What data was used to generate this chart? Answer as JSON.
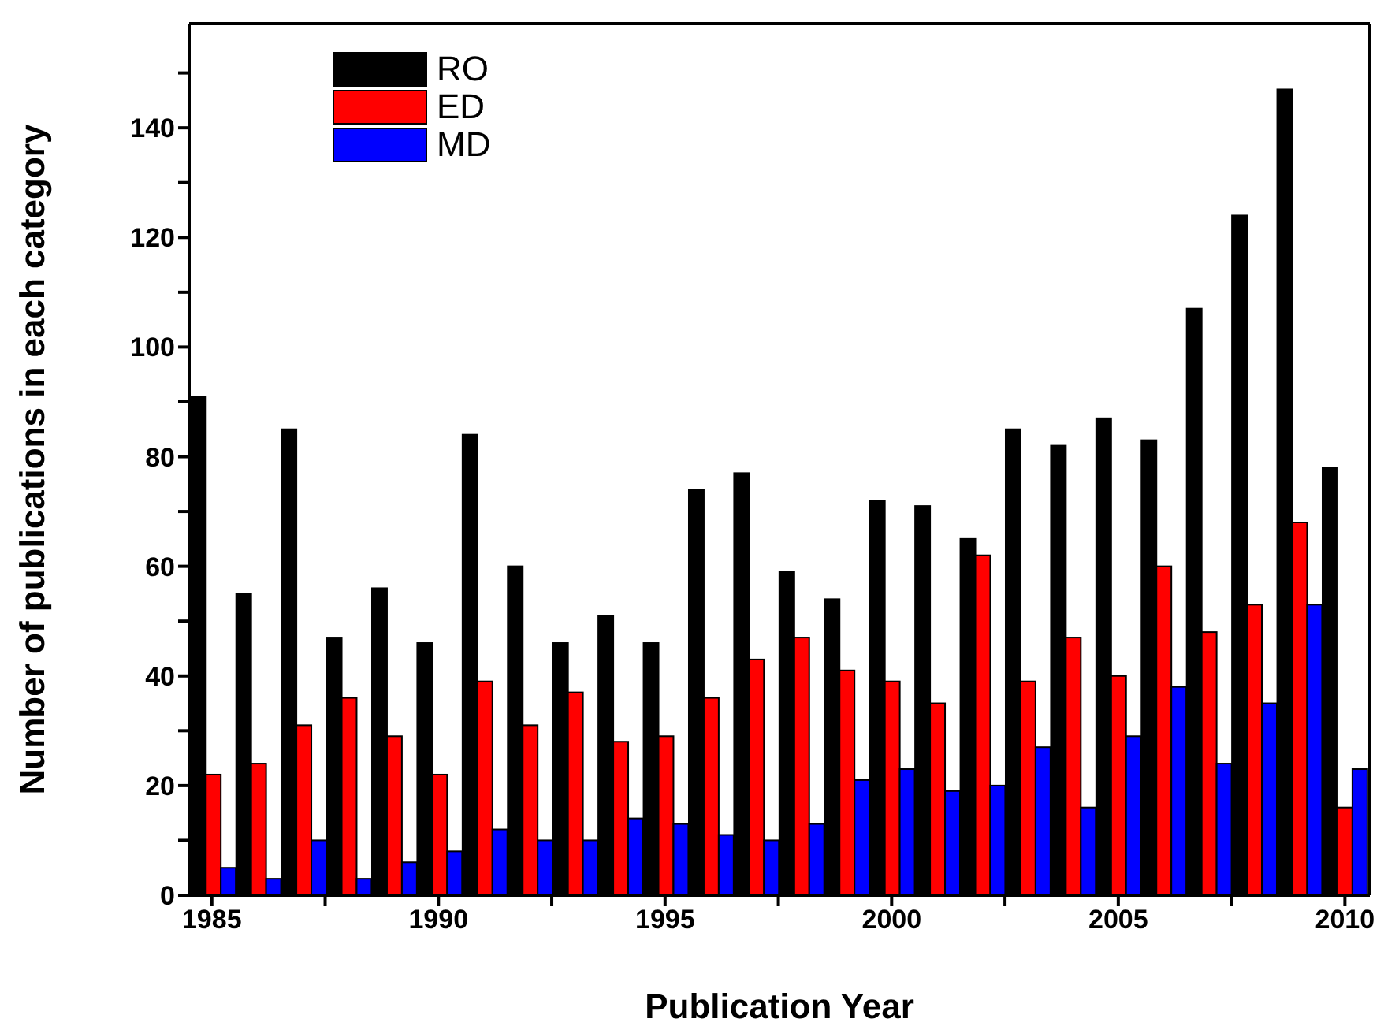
{
  "chart_data": {
    "type": "bar",
    "xlabel": "Publication Year",
    "ylabel": "Number of publications in each category",
    "x": [
      1985,
      1986,
      1987,
      1988,
      1989,
      1990,
      1991,
      1992,
      1993,
      1994,
      1995,
      1996,
      1997,
      1998,
      1999,
      2000,
      2001,
      2002,
      2003,
      2004,
      2005,
      2006,
      2007,
      2008,
      2009,
      2010
    ],
    "series": [
      {
        "name": "RO",
        "color": "#000000",
        "values": [
          91,
          55,
          85,
          47,
          56,
          46,
          84,
          60,
          46,
          51,
          46,
          74,
          77,
          59,
          54,
          72,
          71,
          65,
          85,
          82,
          87,
          83,
          107,
          124,
          147,
          78
        ]
      },
      {
        "name": "ED",
        "color": "#ff0000",
        "values": [
          22,
          24,
          31,
          36,
          29,
          22,
          39,
          31,
          37,
          28,
          29,
          36,
          43,
          47,
          41,
          39,
          35,
          62,
          39,
          47,
          40,
          60,
          48,
          53,
          68,
          16
        ]
      },
      {
        "name": "MD",
        "color": "#0000ff",
        "values": [
          5,
          3,
          10,
          3,
          6,
          8,
          12,
          10,
          10,
          14,
          13,
          11,
          10,
          13,
          21,
          23,
          19,
          20,
          27,
          16,
          29,
          38,
          24,
          35,
          53,
          23
        ]
      }
    ],
    "xlim": [
      1984.5,
      2010.55
    ],
    "xticks": [
      1985,
      {
        "value": 1987.5,
        "label": null
      },
      1990,
      {
        "value": 1992.5,
        "label": null
      },
      1995,
      {
        "value": 1997.5,
        "label": null
      },
      2000,
      {
        "value": 2002.5,
        "label": null
      },
      2005,
      {
        "value": 2007.5,
        "label": null
      },
      2010
    ],
    "ylim": [
      0,
      159
    ],
    "yticks": [
      0,
      {
        "value": 10,
        "label": null
      },
      20,
      {
        "value": 30,
        "label": null
      },
      40,
      {
        "value": 50,
        "label": null
      },
      60,
      {
        "value": 70,
        "label": null
      },
      80,
      {
        "value": 90,
        "label": null
      },
      100,
      {
        "value": 110,
        "label": null
      },
      120,
      {
        "value": 130,
        "label": null
      },
      140,
      {
        "value": 150,
        "label": null
      }
    ],
    "grid": false,
    "legend": "top left"
  }
}
